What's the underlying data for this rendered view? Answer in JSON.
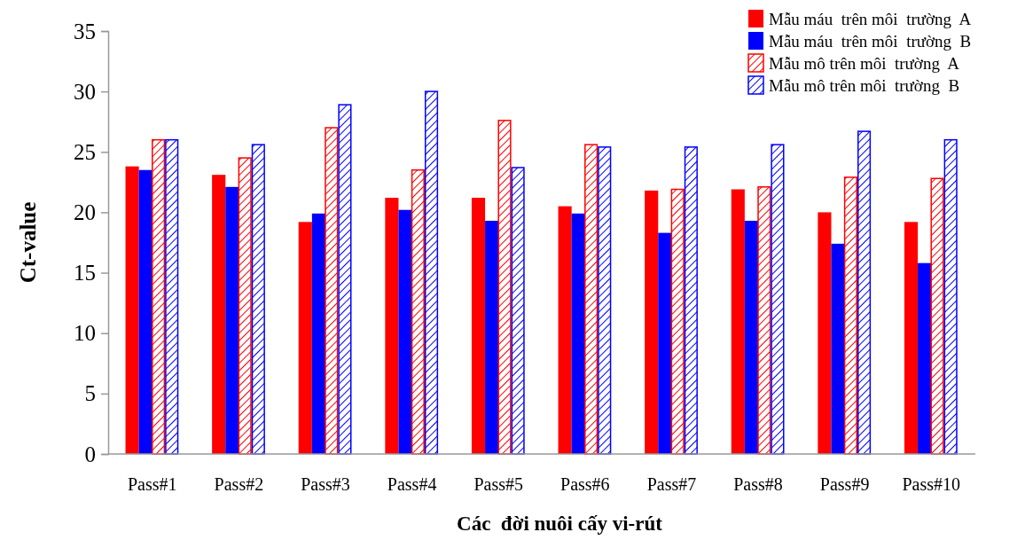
{
  "chart_data": {
    "type": "bar",
    "xlabel": "Các  đời nuôi cấy vi-rút",
    "ylabel": "Ct-value",
    "categories": [
      "Pass#1",
      "Pass#2",
      "Pass#3",
      "Pass#4",
      "Pass#5",
      "Pass#6",
      "Pass#7",
      "Pass#8",
      "Pass#9",
      "Pass#10"
    ],
    "series": [
      {
        "name": "Mẫu máu  trên môi  trường  A",
        "color": "#ff0000",
        "values": [
          23.8,
          23.1,
          19.2,
          21.2,
          21.2,
          20.5,
          21.8,
          21.9,
          20.0,
          19.2
        ]
      },
      {
        "name": "Mẫu máu  trên môi  trường  B",
        "color": "#0000ff",
        "values": [
          23.5,
          22.1,
          19.9,
          20.2,
          19.3,
          19.9,
          18.3,
          19.3,
          17.4,
          15.8
        ]
      },
      {
        "name": "Mẫu mô trên môi  trường  A",
        "color": "#ff0000",
        "values": [
          26.0,
          24.5,
          27.0,
          23.5,
          27.6,
          25.6,
          21.9,
          22.1,
          22.9,
          22.8
        ]
      },
      {
        "name": "Mẫu mô trên môi  trường  B",
        "color": "#0000ff",
        "values": [
          26.0,
          25.6,
          28.9,
          30.0,
          23.7,
          25.4,
          25.4,
          25.6,
          26.7,
          26.0
        ]
      }
    ],
    "ylim": [
      0,
      35
    ],
    "yticks": [
      0,
      5,
      10,
      15,
      20,
      25,
      30,
      35
    ],
    "grid": false,
    "legend": "top right"
  }
}
